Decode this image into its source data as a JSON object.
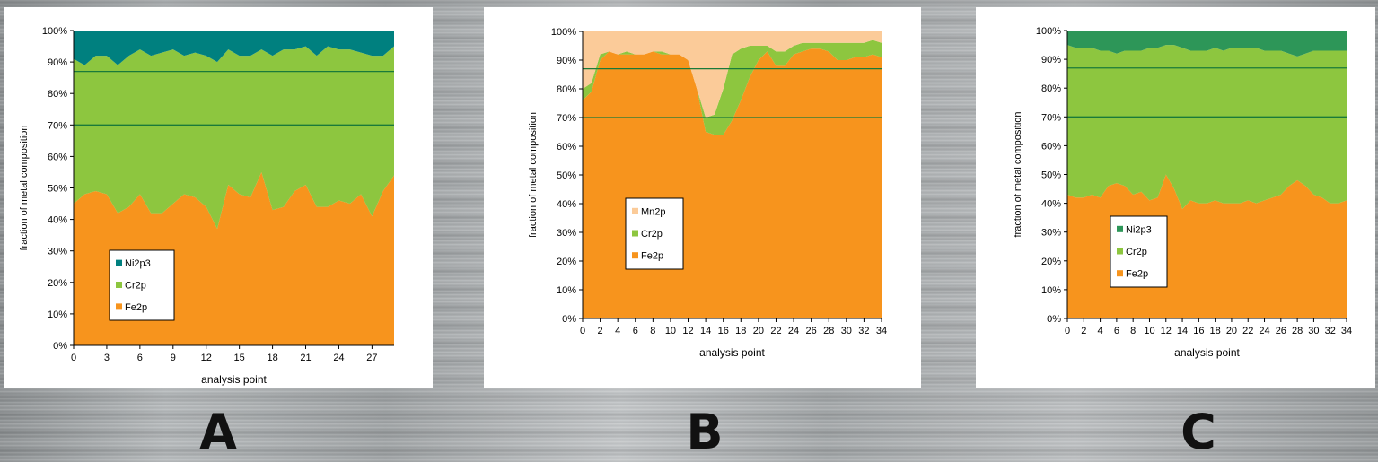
{
  "panel_labels": [
    "A",
    "B",
    "C"
  ],
  "colors": {
    "fe2p": "#f7941d",
    "cr2p": "#8dc63f",
    "ni2p3_a": "#00807f",
    "ni2p3_c": "#2d9658",
    "mn2p": "#fbcb99",
    "reference_line": "#1a7a3a"
  },
  "chart_data": [
    {
      "type": "area",
      "stacked": true,
      "panel": "A",
      "xlabel": "analysis point",
      "ylabel": "fraction of metal composition",
      "xlim": [
        0,
        29
      ],
      "ylim": [
        0,
        100
      ],
      "x_ticks": [
        "0",
        "3",
        "6",
        "9",
        "12",
        "15",
        "18",
        "21",
        "24",
        "27"
      ],
      "y_ticks": [
        "0%",
        "10%",
        "20%",
        "30%",
        "40%",
        "50%",
        "60%",
        "70%",
        "80%",
        "90%",
        "100%"
      ],
      "reference_lines": [
        70,
        87
      ],
      "legend_position": "lower-left",
      "series": [
        {
          "name": "Fe2p",
          "color": "#f7941d",
          "values": [
            45,
            48,
            49,
            48,
            42,
            44,
            48,
            42,
            42,
            45,
            48,
            47,
            44,
            37,
            51,
            48,
            47,
            55,
            43,
            44,
            49,
            51,
            44,
            44,
            46,
            45,
            48,
            41,
            49,
            54
          ]
        },
        {
          "name": "Cr2p",
          "color": "#8dc63f",
          "values": [
            46,
            41,
            43,
            44,
            47,
            48,
            46,
            50,
            51,
            49,
            44,
            46,
            48,
            53,
            43,
            44,
            45,
            39,
            49,
            50,
            45,
            44,
            48,
            51,
            48,
            49,
            45,
            51,
            43,
            41
          ]
        },
        {
          "name": "Ni2p3",
          "color": "#00807f",
          "values": [
            9,
            11,
            8,
            8,
            11,
            8,
            6,
            8,
            7,
            6,
            8,
            7,
            8,
            10,
            6,
            8,
            8,
            6,
            8,
            6,
            6,
            5,
            8,
            5,
            6,
            6,
            7,
            8,
            8,
            5
          ]
        }
      ]
    },
    {
      "type": "area",
      "stacked": true,
      "panel": "B",
      "xlabel": "analysis point",
      "ylabel": "fraction of metal composition",
      "xlim": [
        0,
        34
      ],
      "ylim": [
        0,
        100
      ],
      "x_ticks": [
        "0",
        "2",
        "4",
        "6",
        "8",
        "10",
        "12",
        "14",
        "16",
        "18",
        "20",
        "22",
        "24",
        "26",
        "28",
        "30",
        "32",
        "34"
      ],
      "y_ticks": [
        "0%",
        "10%",
        "20%",
        "30%",
        "40%",
        "50%",
        "60%",
        "70%",
        "80%",
        "90%",
        "100%"
      ],
      "reference_lines": [
        70,
        87
      ],
      "legend_position": "center-left",
      "series": [
        {
          "name": "Fe2p",
          "color": "#f7941d",
          "values": [
            76,
            79,
            90,
            93,
            92,
            92,
            92,
            92,
            93,
            92,
            92,
            92,
            90,
            80,
            65,
            64,
            64,
            69,
            76,
            84,
            90,
            93,
            88,
            88,
            92,
            93,
            94,
            94,
            93,
            90,
            90,
            91,
            91,
            92,
            91
          ]
        },
        {
          "name": "Cr2p",
          "color": "#8dc63f",
          "values": [
            4,
            3,
            2,
            0,
            0,
            1,
            0,
            0,
            0,
            1,
            0,
            0,
            0,
            0,
            5,
            7,
            16,
            23,
            18,
            11,
            5,
            2,
            5,
            5,
            3,
            3,
            2,
            2,
            3,
            6,
            6,
            5,
            5,
            5,
            5
          ]
        },
        {
          "name": "Mn2p",
          "color": "#fbcb99",
          "values": [
            20,
            18,
            8,
            7,
            8,
            7,
            8,
            8,
            7,
            7,
            8,
            8,
            10,
            20,
            30,
            29,
            20,
            8,
            6,
            5,
            5,
            5,
            7,
            7,
            5,
            4,
            4,
            4,
            4,
            4,
            4,
            4,
            4,
            3,
            4
          ]
        }
      ]
    },
    {
      "type": "area",
      "stacked": true,
      "panel": "C",
      "xlabel": "analysis point",
      "ylabel": "fraction of metal composition",
      "xlim": [
        0,
        34
      ],
      "ylim": [
        0,
        100
      ],
      "x_ticks": [
        "0",
        "2",
        "4",
        "6",
        "8",
        "10",
        "12",
        "14",
        "16",
        "18",
        "20",
        "22",
        "24",
        "26",
        "28",
        "30",
        "32",
        "34"
      ],
      "y_ticks": [
        "0%",
        "10%",
        "20%",
        "30%",
        "40%",
        "50%",
        "60%",
        "70%",
        "80%",
        "90%",
        "100%"
      ],
      "reference_lines": [
        70,
        87
      ],
      "legend_position": "center-left",
      "series": [
        {
          "name": "Fe2p",
          "color": "#f7941d",
          "values": [
            43,
            42,
            42,
            43,
            42,
            46,
            47,
            46,
            43,
            44,
            41,
            42,
            50,
            45,
            38,
            41,
            40,
            40,
            41,
            40,
            40,
            40,
            41,
            40,
            41,
            42,
            43,
            46,
            48,
            46,
            43,
            42,
            40,
            40,
            41
          ]
        },
        {
          "name": "Cr2p",
          "color": "#8dc63f",
          "values": [
            52,
            52,
            52,
            51,
            51,
            47,
            45,
            47,
            50,
            49,
            53,
            52,
            45,
            50,
            56,
            52,
            53,
            53,
            53,
            53,
            54,
            54,
            53,
            54,
            52,
            51,
            50,
            46,
            43,
            46,
            50,
            51,
            53,
            53,
            52
          ]
        },
        {
          "name": "Ni2p3",
          "color": "#2d9658",
          "values": [
            5,
            6,
            6,
            6,
            7,
            7,
            8,
            7,
            7,
            7,
            6,
            6,
            5,
            5,
            6,
            7,
            7,
            7,
            6,
            7,
            6,
            6,
            6,
            6,
            7,
            7,
            7,
            8,
            9,
            8,
            7,
            7,
            7,
            7,
            7
          ]
        }
      ]
    }
  ]
}
